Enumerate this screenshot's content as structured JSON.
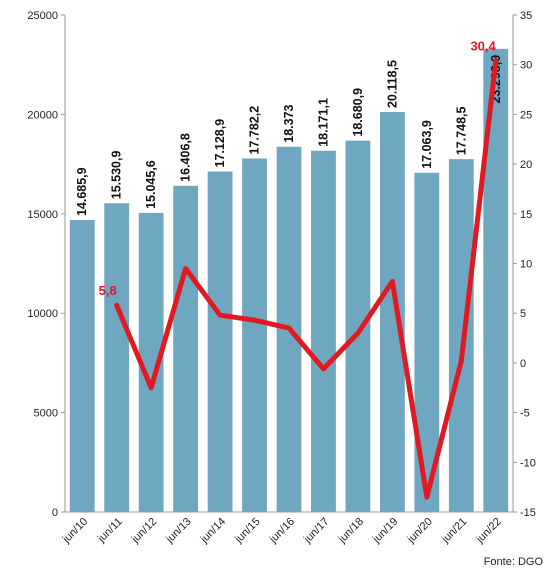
{
  "chart_data": {
    "type": "bar",
    "categories": [
      "jun/10",
      "jun/11",
      "jun/12",
      "jun/13",
      "jun/14",
      "jun/15",
      "jun/16",
      "jun/17",
      "jun/18",
      "jun/19",
      "jun/20",
      "jun/21",
      "jun/22"
    ],
    "series": [
      {
        "type": "bar",
        "axis": "left",
        "values": [
          14685.9,
          15530.9,
          15045.6,
          16406.8,
          17128.9,
          17782.2,
          18373,
          18171.1,
          18680.9,
          20118.5,
          17063.9,
          17748.5,
          23298.9
        ],
        "data_labels": [
          "14.685,9",
          "15.530,9",
          "15.045,6",
          "16.406,8",
          "17.128,9",
          "17.782,2",
          "18.373",
          "18.171,1",
          "18.680,9",
          "20.118,5",
          "17.063,9",
          "17.748,5",
          "23.298,9"
        ],
        "color": "#6fa6c0"
      },
      {
        "type": "line",
        "axis": "right",
        "values": [
          null,
          5.8,
          -2.5,
          9.5,
          4.8,
          4.3,
          3.5,
          -0.6,
          3.0,
          8.2,
          -13.5,
          0.2,
          30.4
        ],
        "data_labels": {
          "1": "5,8",
          "12": "30,4"
        },
        "color": "#e01a22"
      }
    ],
    "y_left": {
      "ylim": [
        0,
        25000
      ],
      "ticks": [
        "0",
        "5000",
        "10000",
        "15000",
        "20000",
        "25000"
      ]
    },
    "y_right": {
      "ylim": [
        -15,
        35
      ],
      "ticks": [
        "-15",
        "-10",
        "-5",
        "0",
        "5",
        "10",
        "15",
        "20",
        "25",
        "30",
        "35"
      ]
    },
    "xlabel": "",
    "ylabel": "",
    "grid": false,
    "legend": "none"
  },
  "source_label": "Fonte: DGO"
}
